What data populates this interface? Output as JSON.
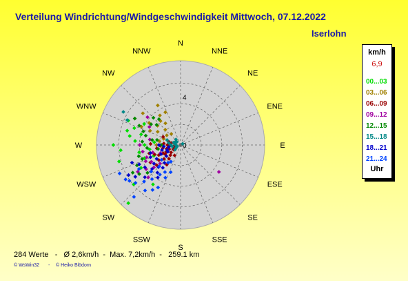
{
  "header": {
    "title": "Verteilung Windrichtung/Windgeschwindigkeit  Mittwoch, 07.12.2022",
    "location": "Iserlohn"
  },
  "legend": {
    "unit": "km/h",
    "max_value": "6,9",
    "hour_label": "Uhr",
    "bands": [
      {
        "label": "00...03",
        "color": "#00dd00"
      },
      {
        "label": "03...06",
        "color": "#a08000"
      },
      {
        "label": "06...09",
        "color": "#990000"
      },
      {
        "label": "09...12",
        "color": "#a000a0"
      },
      {
        "label": "12...15",
        "color": "#008800"
      },
      {
        "label": "15...18",
        "color": "#008888"
      },
      {
        "label": "18...21",
        "color": "#0000cc"
      },
      {
        "label": "21...24",
        "color": "#0044ff"
      }
    ]
  },
  "footer": {
    "stats": "284 Werte   -   Ø 2,6km/h  -  Max. 7,2km/h  -   259.1 km",
    "credit_left": "© WsWin32",
    "credit_sep": "-",
    "credit_right": "© Heiko Blödorn"
  },
  "chart_data": {
    "type": "scatter",
    "subtype": "polar wind rose",
    "directions": [
      "N",
      "NNE",
      "NE",
      "ENE",
      "E",
      "ESE",
      "SE",
      "SSE",
      "S",
      "SSW",
      "SW",
      "WSW",
      "W",
      "WNW",
      "NW",
      "NNW"
    ],
    "ring_labels": [
      "0",
      "4"
    ],
    "radial_max": 7,
    "units": "km/h",
    "points_count": 284,
    "groups": [
      {
        "band": "00...03",
        "points": [
          [
            270,
            5.6
          ],
          [
            255,
            5.3
          ],
          [
            265,
            5.0
          ],
          [
            285,
            4.6
          ],
          [
            290,
            4.1
          ],
          [
            280,
            4.3
          ],
          [
            275,
            3.8
          ],
          [
            260,
            3.5
          ],
          [
            250,
            3.2
          ],
          [
            240,
            3.8
          ],
          [
            230,
            5.1
          ],
          [
            222,
            6.5
          ],
          [
            215,
            4.0
          ],
          [
            270,
            3.0
          ],
          [
            300,
            3.5
          ],
          [
            295,
            4.8
          ],
          [
            285,
            3.4
          ],
          [
            262,
            2.6
          ],
          [
            248,
            2.4
          ],
          [
            276,
            2.2
          ]
        ]
      },
      {
        "band": "03...06",
        "points": [
          [
            330,
            3.8
          ],
          [
            325,
            3.0
          ],
          [
            320,
            2.6
          ],
          [
            310,
            2.5
          ],
          [
            305,
            3.2
          ],
          [
            300,
            2.2
          ],
          [
            315,
            1.8
          ],
          [
            295,
            2.8
          ],
          [
            335,
            3.0
          ],
          [
            290,
            1.5
          ],
          [
            280,
            1.8
          ],
          [
            270,
            2.0
          ],
          [
            305,
            1.4
          ],
          [
            320,
            1.2
          ],
          [
            325,
            2.2
          ],
          [
            295,
            3.6
          ],
          [
            310,
            4.1
          ],
          [
            300,
            4.4
          ]
        ]
      },
      {
        "band": "06...09",
        "points": [
          [
            240,
            1.5
          ],
          [
            245,
            2.0
          ],
          [
            250,
            1.0
          ],
          [
            255,
            1.2
          ],
          [
            235,
            2.2
          ],
          [
            230,
            1.8
          ],
          [
            225,
            1.2
          ],
          [
            260,
            1.5
          ],
          [
            265,
            0.9
          ],
          [
            270,
            1.1
          ],
          [
            245,
            1.6
          ],
          [
            238,
            0.7
          ],
          [
            220,
            1.5
          ],
          [
            250,
            2.3
          ],
          [
            262,
            2.0
          ],
          [
            275,
            1.4
          ],
          [
            285,
            1.0
          ],
          [
            295,
            1.6
          ],
          [
            230,
            2.6
          ],
          [
            240,
            2.9
          ],
          [
            255,
            2.7
          ],
          [
            268,
            1.7
          ],
          [
            280,
            0.8
          ],
          [
            210,
            1.0
          ],
          [
            215,
            2.0
          ],
          [
            248,
            0.5
          ],
          [
            232,
            1.0
          ],
          [
            258,
            0.6
          ],
          [
            272,
            2.5
          ],
          [
            244,
            1.3
          ]
        ]
      },
      {
        "band": "09...12",
        "points": [
          [
            125,
            3.9
          ],
          [
            240,
            2.8
          ],
          [
            245,
            3.2
          ],
          [
            235,
            3.5
          ],
          [
            230,
            2.9
          ],
          [
            250,
            3.0
          ],
          [
            225,
            3.8
          ],
          [
            260,
            3.2
          ],
          [
            255,
            2.4
          ],
          [
            238,
            4.2
          ],
          [
            300,
            3.0
          ],
          [
            310,
            3.6
          ],
          [
            280,
            2.6
          ],
          [
            270,
            3.4
          ],
          [
            248,
            1.8
          ],
          [
            228,
            2.3
          ]
        ]
      },
      {
        "band": "12...15",
        "points": [
          [
            300,
            4.4
          ],
          [
            295,
            3.8
          ],
          [
            305,
            3.0
          ],
          [
            290,
            3.3
          ],
          [
            285,
            3.0
          ],
          [
            280,
            2.4
          ],
          [
            275,
            3.2
          ],
          [
            265,
            2.8
          ],
          [
            255,
            3.6
          ],
          [
            250,
            3.4
          ],
          [
            245,
            4.0
          ],
          [
            240,
            4.6
          ],
          [
            235,
            4.2
          ],
          [
            230,
            3.6
          ],
          [
            310,
            2.6
          ],
          [
            315,
            3.2
          ],
          [
            320,
            2.8
          ],
          [
            260,
            1.9
          ],
          [
            270,
            1.6
          ],
          [
            282,
            2.0
          ]
        ]
      },
      {
        "band": "15...18",
        "points": [
          [
            300,
            5.5
          ],
          [
            295,
            4.9
          ],
          [
            60,
            0.2
          ],
          [
            270,
            0.4
          ],
          [
            250,
            0.3
          ],
          [
            290,
            0.6
          ],
          [
            280,
            0.5
          ],
          [
            240,
            0.4
          ],
          [
            230,
            0.6
          ],
          [
            260,
            0.7
          ],
          [
            300,
            0.5
          ],
          [
            310,
            0.4
          ],
          [
            320,
            0.6
          ],
          [
            270,
            0.8
          ],
          [
            280,
            1.0
          ],
          [
            290,
            1.2
          ]
        ]
      },
      {
        "band": "18...21",
        "points": [
          [
            250,
            1.2
          ],
          [
            245,
            1.8
          ],
          [
            240,
            2.3
          ],
          [
            235,
            2.7
          ],
          [
            230,
            3.1
          ],
          [
            225,
            2.6
          ],
          [
            220,
            3.0
          ],
          [
            215,
            3.3
          ],
          [
            228,
            4.0
          ],
          [
            235,
            4.6
          ],
          [
            240,
            5.0
          ],
          [
            245,
            3.8
          ],
          [
            250,
            4.3
          ],
          [
            255,
            1.6
          ],
          [
            260,
            1.0
          ],
          [
            232,
            1.5
          ],
          [
            222,
            2.0
          ],
          [
            218,
            2.4
          ],
          [
            265,
            1.4
          ],
          [
            255,
            2.6
          ],
          [
            270,
            1.8
          ],
          [
            238,
            3.5
          ],
          [
            248,
            2.7
          ],
          [
            242,
            1.2
          ]
        ]
      },
      {
        "band": "21...24",
        "points": [
          [
            225,
            4.3
          ],
          [
            220,
            3.7
          ],
          [
            215,
            3.0
          ],
          [
            210,
            2.6
          ],
          [
            218,
            4.8
          ],
          [
            212,
            4.4
          ],
          [
            230,
            4.9
          ],
          [
            235,
            5.2
          ],
          [
            240,
            4.0
          ],
          [
            225,
            2.5
          ],
          [
            205,
            3.0
          ],
          [
            200,
            2.4
          ],
          [
            215,
            1.8
          ],
          [
            245,
            5.6
          ],
          [
            238,
            5.4
          ],
          [
            222,
            5.8
          ],
          [
            210,
            1.6
          ],
          [
            228,
            3.3
          ],
          [
            232,
            2.0
          ],
          [
            208,
            4.0
          ]
        ]
      }
    ]
  }
}
